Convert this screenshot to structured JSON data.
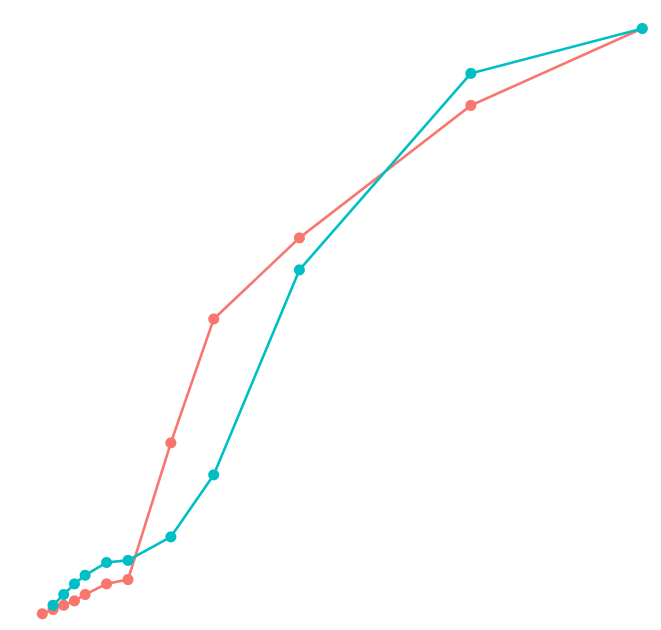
{
  "chart_data": {
    "type": "line",
    "title": "",
    "xlabel": "",
    "ylabel": "",
    "grid": false,
    "legend": "none",
    "axes_visible": false,
    "xlim": [
      0,
      14
    ],
    "ylim": [
      0,
      14
    ],
    "series": [
      {
        "color": "#F8766D",
        "points": [
          {
            "x": 0.1,
            "y": 0.1
          },
          {
            "x": 0.35,
            "y": 0.2
          },
          {
            "x": 0.6,
            "y": 0.3
          },
          {
            "x": 0.85,
            "y": 0.4
          },
          {
            "x": 1.1,
            "y": 0.55
          },
          {
            "x": 1.6,
            "y": 0.8
          },
          {
            "x": 2.1,
            "y": 0.9
          },
          {
            "x": 3.1,
            "y": 4.1
          },
          {
            "x": 4.1,
            "y": 7.0
          },
          {
            "x": 6.1,
            "y": 8.9
          },
          {
            "x": 10.1,
            "y": 12.0
          },
          {
            "x": 14.1,
            "y": 13.8
          }
        ]
      },
      {
        "color": "#00BFC4",
        "points": [
          {
            "x": 0.35,
            "y": 0.3
          },
          {
            "x": 0.6,
            "y": 0.55
          },
          {
            "x": 0.85,
            "y": 0.8
          },
          {
            "x": 1.1,
            "y": 1.0
          },
          {
            "x": 1.6,
            "y": 1.3
          },
          {
            "x": 2.1,
            "y": 1.35
          },
          {
            "x": 3.1,
            "y": 1.9
          },
          {
            "x": 4.1,
            "y": 3.35
          },
          {
            "x": 6.1,
            "y": 8.15
          },
          {
            "x": 10.1,
            "y": 12.75
          },
          {
            "x": 14.1,
            "y": 13.8
          }
        ]
      }
    ]
  }
}
